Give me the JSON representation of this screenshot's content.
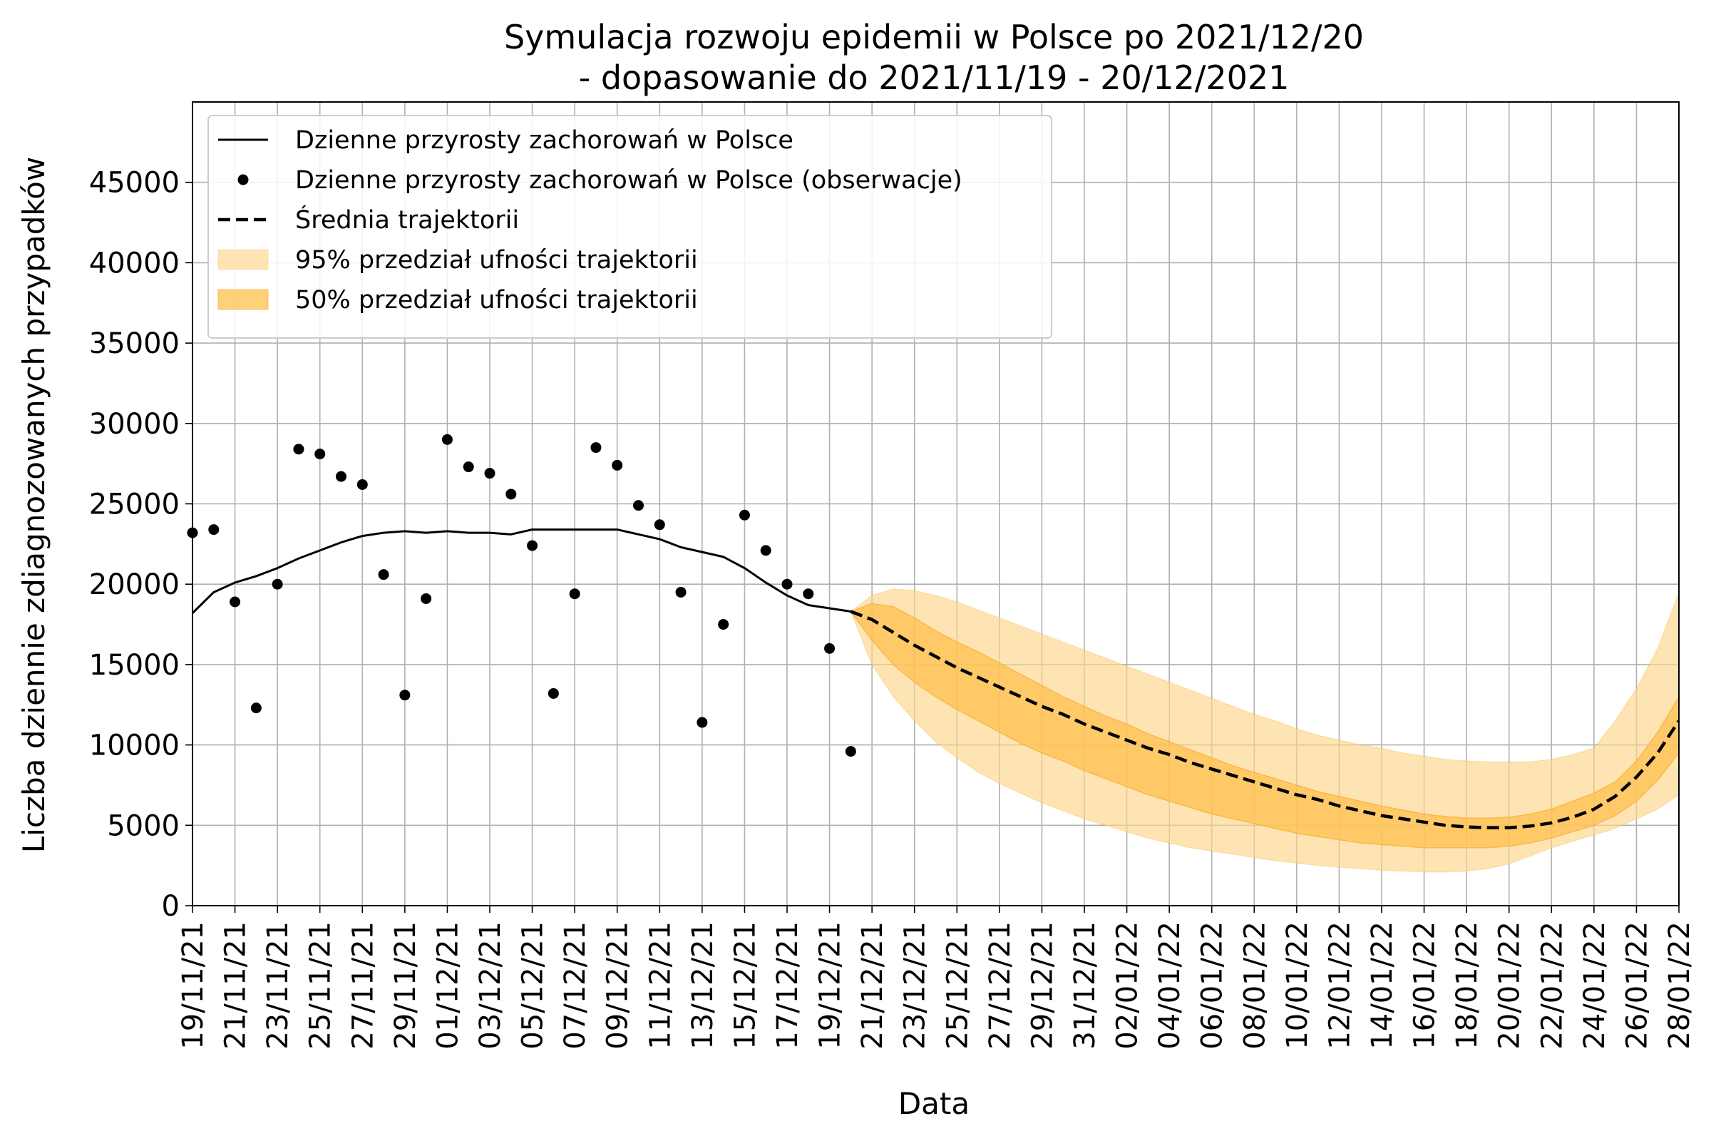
{
  "chart_data": {
    "type": "line",
    "title_line1": "Symulacja rozwoju epidemii w Polsce po 2021/12/20",
    "title_line2": "- dopasowanie do 2021/11/19 - 20/12/2021",
    "xlabel": "Data",
    "ylabel": "Liczba dziennie zdiagnozowanych przypadków",
    "ylim": [
      0,
      50000
    ],
    "yticks": [
      0,
      5000,
      10000,
      15000,
      20000,
      25000,
      30000,
      35000,
      40000,
      45000
    ],
    "grid": true,
    "legend_position": "top-left",
    "x_dates": [
      "19/11/21",
      "20/11/21",
      "21/11/21",
      "22/11/21",
      "23/11/21",
      "24/11/21",
      "25/11/21",
      "26/11/21",
      "27/11/21",
      "28/11/21",
      "29/11/21",
      "30/11/21",
      "01/12/21",
      "02/12/21",
      "03/12/21",
      "04/12/21",
      "05/12/21",
      "06/12/21",
      "07/12/21",
      "08/12/21",
      "09/12/21",
      "10/12/21",
      "11/12/21",
      "12/12/21",
      "13/12/21",
      "14/12/21",
      "15/12/21",
      "16/12/21",
      "17/12/21",
      "18/12/21",
      "19/12/21",
      "20/12/21",
      "21/12/21",
      "22/12/21",
      "23/12/21",
      "24/12/21",
      "25/12/21",
      "26/12/21",
      "27/12/21",
      "28/12/21",
      "29/12/21",
      "30/12/21",
      "31/12/21",
      "01/01/22",
      "02/01/22",
      "03/01/22",
      "04/01/22",
      "05/01/22",
      "06/01/22",
      "07/01/22",
      "08/01/22",
      "09/01/22",
      "10/01/22",
      "11/01/22",
      "12/01/22",
      "13/01/22",
      "14/01/22",
      "15/01/22",
      "16/01/22",
      "17/01/22",
      "18/01/22",
      "19/01/22",
      "20/01/22",
      "21/01/22",
      "22/01/22",
      "23/01/22",
      "24/01/22",
      "25/01/22",
      "26/01/22",
      "27/01/22",
      "28/01/22"
    ],
    "x_tick_labels": [
      "19/11/21",
      "21/11/21",
      "23/11/21",
      "25/11/21",
      "27/11/21",
      "29/11/21",
      "01/12/21",
      "03/12/21",
      "05/12/21",
      "07/12/21",
      "09/12/21",
      "11/12/21",
      "13/12/21",
      "15/12/21",
      "17/12/21",
      "19/12/21",
      "21/12/21",
      "23/12/21",
      "25/12/21",
      "27/12/21",
      "29/12/21",
      "31/12/21",
      "02/01/22",
      "04/01/22",
      "06/01/22",
      "08/01/22",
      "10/01/22",
      "12/01/22",
      "14/01/22",
      "16/01/22",
      "18/01/22",
      "20/01/22",
      "22/01/22",
      "24/01/22",
      "26/01/22",
      "28/01/22"
    ],
    "series": [
      {
        "name": "Dzienne przyrosty zachorowań w Polsce",
        "style": "solid",
        "color": "#000000",
        "dates": [
          "19/11/21",
          "20/11/21",
          "21/11/21",
          "22/11/21",
          "23/11/21",
          "24/11/21",
          "25/11/21",
          "26/11/21",
          "27/11/21",
          "28/11/21",
          "29/11/21",
          "30/11/21",
          "01/12/21",
          "02/12/21",
          "03/12/21",
          "04/12/21",
          "05/12/21",
          "06/12/21",
          "07/12/21",
          "08/12/21",
          "09/12/21",
          "10/12/21",
          "11/12/21",
          "12/12/21",
          "13/12/21",
          "14/12/21",
          "15/12/21",
          "16/12/21",
          "17/12/21",
          "18/12/21",
          "19/12/21",
          "20/12/21"
        ],
        "values": [
          18200,
          19500,
          20100,
          20500,
          21000,
          21600,
          22100,
          22600,
          23000,
          23200,
          23300,
          23200,
          23300,
          23200,
          23200,
          23100,
          23400,
          23400,
          23400,
          23400,
          23400,
          23100,
          22800,
          22300,
          22000,
          21700,
          21000,
          20100,
          19300,
          18700,
          18500,
          18300
        ]
      },
      {
        "name": "Dzienne przyrosty zachorowań w Polsce (obserwacje)",
        "style": "points",
        "color": "#000000",
        "dates": [
          "19/11/21",
          "20/11/21",
          "21/11/21",
          "22/11/21",
          "23/11/21",
          "24/11/21",
          "25/11/21",
          "26/11/21",
          "27/11/21",
          "28/11/21",
          "29/11/21",
          "30/11/21",
          "01/12/21",
          "02/12/21",
          "03/12/21",
          "04/12/21",
          "05/12/21",
          "06/12/21",
          "07/12/21",
          "08/12/21",
          "09/12/21",
          "10/12/21",
          "11/12/21",
          "12/12/21",
          "13/12/21",
          "14/12/21",
          "15/12/21",
          "16/12/21",
          "17/12/21",
          "18/12/21",
          "19/12/21",
          "20/12/21"
        ],
        "values": [
          23200,
          23400,
          18900,
          12300,
          20000,
          28400,
          28100,
          26700,
          26200,
          20600,
          13100,
          19100,
          29000,
          27300,
          26900,
          25600,
          22400,
          13200,
          19400,
          28500,
          27400,
          24900,
          23700,
          19500,
          11400,
          17500,
          24300,
          22100,
          20000,
          19400,
          16000,
          9600
        ]
      },
      {
        "name": "Średnia trajektorii",
        "style": "dashed",
        "color": "#000000",
        "dates": [
          "20/12/21",
          "21/12/21",
          "22/12/21",
          "23/12/21",
          "24/12/21",
          "25/12/21",
          "26/12/21",
          "27/12/21",
          "28/12/21",
          "29/12/21",
          "30/12/21",
          "31/12/21",
          "01/01/22",
          "02/01/22",
          "03/01/22",
          "04/01/22",
          "05/01/22",
          "06/01/22",
          "07/01/22",
          "08/01/22",
          "09/01/22",
          "10/01/22",
          "11/01/22",
          "12/01/22",
          "13/01/22",
          "14/01/22",
          "15/01/22",
          "16/01/22",
          "17/01/22",
          "18/01/22",
          "19/01/22",
          "20/01/22",
          "21/01/22",
          "22/01/22",
          "23/01/22",
          "24/01/22",
          "25/01/22",
          "26/01/22",
          "27/01/22",
          "28/01/22"
        ],
        "values": [
          18300,
          17800,
          17000,
          16200,
          15500,
          14800,
          14200,
          13600,
          13000,
          12400,
          11900,
          11300,
          10800,
          10300,
          9800,
          9400,
          8900,
          8500,
          8100,
          7700,
          7300,
          6900,
          6600,
          6200,
          5900,
          5600,
          5400,
          5200,
          5000,
          4900,
          4850,
          4850,
          4950,
          5150,
          5500,
          6000,
          6800,
          8000,
          9500,
          11500
        ]
      }
    ],
    "bands": [
      {
        "name": "95% przedział ufności trajektorii",
        "color": "#ffd68a",
        "opacity": 0.65,
        "dates": [
          "20/12/21",
          "21/12/21",
          "22/12/21",
          "23/12/21",
          "24/12/21",
          "25/12/21",
          "26/12/21",
          "27/12/21",
          "28/12/21",
          "29/12/21",
          "30/12/21",
          "31/12/21",
          "01/01/22",
          "02/01/22",
          "03/01/22",
          "04/01/22",
          "05/01/22",
          "06/01/22",
          "07/01/22",
          "08/01/22",
          "09/01/22",
          "10/01/22",
          "11/01/22",
          "12/01/22",
          "13/01/22",
          "14/01/22",
          "15/01/22",
          "16/01/22",
          "17/01/22",
          "18/01/22",
          "19/01/22",
          "20/01/22",
          "21/01/22",
          "22/01/22",
          "23/01/22",
          "24/01/22",
          "25/01/22",
          "26/01/22",
          "27/01/22",
          "28/01/22"
        ],
        "lower": [
          18300,
          15000,
          13000,
          11500,
          10200,
          9200,
          8300,
          7600,
          7000,
          6400,
          5900,
          5400,
          5000,
          4600,
          4200,
          3900,
          3600,
          3400,
          3200,
          3000,
          2800,
          2650,
          2500,
          2400,
          2300,
          2200,
          2150,
          2100,
          2100,
          2150,
          2300,
          2600,
          3100,
          3600,
          4000,
          4400,
          4800,
          5400,
          6000,
          6900
        ],
        "upper": [
          18300,
          19300,
          19700,
          19600,
          19300,
          18900,
          18400,
          17900,
          17400,
          16900,
          16400,
          15900,
          15400,
          14900,
          14400,
          13900,
          13400,
          12900,
          12400,
          11900,
          11500,
          11000,
          10600,
          10300,
          10000,
          9800,
          9500,
          9300,
          9100,
          9000,
          8950,
          8950,
          8950,
          9100,
          9400,
          9800,
          11500,
          13500,
          16000,
          19500
        ]
      },
      {
        "name": "50% przedział ufności trajektorii",
        "color": "#ffc04d",
        "opacity": 0.75,
        "dates": [
          "20/12/21",
          "21/12/21",
          "22/12/21",
          "23/12/21",
          "24/12/21",
          "25/12/21",
          "26/12/21",
          "27/12/21",
          "28/12/21",
          "29/12/21",
          "30/12/21",
          "31/12/21",
          "01/01/22",
          "02/01/22",
          "03/01/22",
          "04/01/22",
          "05/01/22",
          "06/01/22",
          "07/01/22",
          "08/01/22",
          "09/01/22",
          "10/01/22",
          "11/01/22",
          "12/01/22",
          "13/01/22",
          "14/01/22",
          "15/01/22",
          "16/01/22",
          "17/01/22",
          "18/01/22",
          "19/01/22",
          "20/01/22",
          "21/01/22",
          "22/01/22",
          "23/01/22",
          "24/01/22",
          "25/01/22",
          "26/01/22",
          "27/01/22",
          "28/01/22"
        ],
        "lower": [
          18300,
          16500,
          15000,
          13900,
          13000,
          12200,
          11500,
          10800,
          10100,
          9500,
          9000,
          8400,
          7900,
          7400,
          6900,
          6500,
          6100,
          5700,
          5400,
          5100,
          4800,
          4500,
          4300,
          4100,
          3900,
          3800,
          3700,
          3600,
          3600,
          3600,
          3600,
          3700,
          3900,
          4200,
          4600,
          5000,
          5600,
          6500,
          7800,
          9500
        ],
        "upper": [
          18300,
          18800,
          18600,
          17900,
          17100,
          16400,
          15800,
          15100,
          14400,
          13700,
          13000,
          12400,
          11800,
          11300,
          10700,
          10200,
          9700,
          9200,
          8700,
          8300,
          7900,
          7500,
          7100,
          6800,
          6500,
          6200,
          5950,
          5700,
          5550,
          5450,
          5450,
          5500,
          5700,
          6000,
          6500,
          7000,
          7700,
          9000,
          10800,
          13000
        ]
      }
    ],
    "legend": [
      {
        "label": "Dzienne przyrosty zachorowań w Polsce",
        "kind": "line"
      },
      {
        "label": "Dzienne przyrosty zachorowań w Polsce (obserwacje)",
        "kind": "dot"
      },
      {
        "label": "Średnia trajektorii",
        "kind": "dash"
      },
      {
        "label": "95% przedział ufności trajektorii",
        "kind": "band95"
      },
      {
        "label": "50% przedział ufności trajektorii",
        "kind": "band50"
      }
    ]
  }
}
